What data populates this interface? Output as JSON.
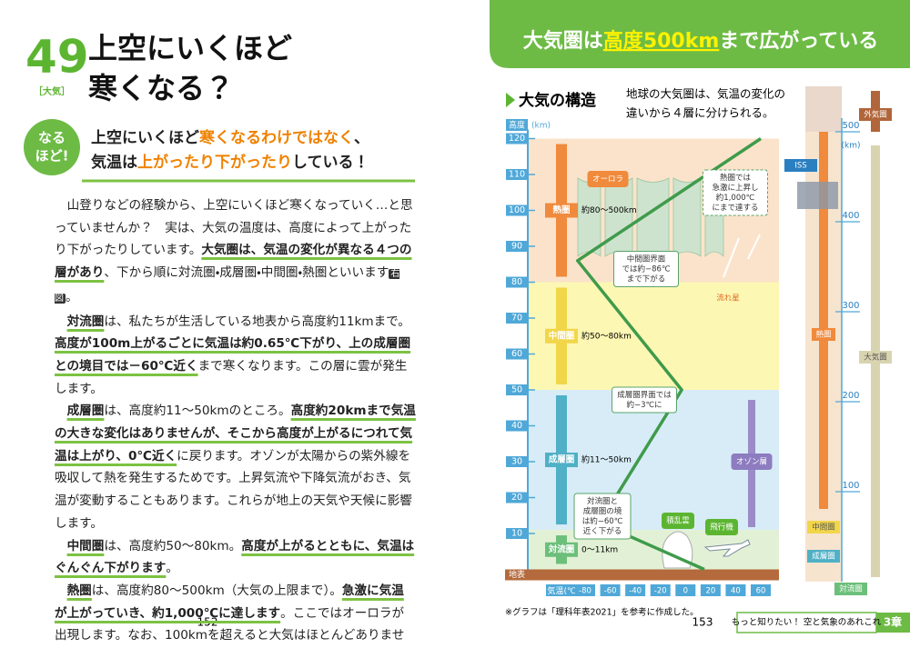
{
  "left_page": {
    "number": "49",
    "category": "［大気］",
    "title": [
      "上空にいくほど",
      "寒くなる？"
    ],
    "badge": [
      "なる",
      "ほど!"
    ],
    "lead": [
      [
        {
          "text": "上空にいくほど"
        },
        {
          "text": "寒くなるわけではなく",
          "em": true
        },
        {
          "text": "、"
        }
      ],
      [
        {
          "text": "気温は"
        },
        {
          "text": "上がったり下がったり",
          "em": true
        },
        {
          "text": "している！"
        }
      ]
    ],
    "paragraphs": [
      [
        {
          "text": "山登りなどの経験から、上空にいくほど寒くなっていく…と思っていませんか？　実は、大気の温度は、高度によって上がったり下がったりしています。"
        },
        {
          "text": "大気圏は、気温の変化が異なる４つの層があり",
          "bold": true
        },
        {
          "text": "、下から順に対流圏・成層圏・中間圏・熱圏といいます"
        },
        {
          "text": "右図",
          "tag": true
        },
        {
          "text": "。"
        }
      ],
      [
        {
          "text": "対流圏",
          "bold": true
        },
        {
          "text": "は、私たちが生活している地表から高度約11kmまで。"
        },
        {
          "text": "高度が100m上がるごとに気温は約0.65℃下がり、上の成層圏との境目では－60℃近く",
          "bold": true
        },
        {
          "text": "まで寒くなります。この層に雲が発生します。"
        }
      ],
      [
        {
          "text": "成層圏",
          "bold": true
        },
        {
          "text": "は、高度約11～50kmのところ。"
        },
        {
          "text": "高度約20kmまで気温の大きな変化はありませんが、そこから高度が上がるにつれて気温は上がり、0℃近く",
          "bold": true
        },
        {
          "text": "に戻ります。オゾンが太陽からの紫外線を吸収して熱を発生するためです。上昇気流や下降気流がおき、気温が変動することもあります。これらが地上の天気や天候に影響します。"
        }
      ],
      [
        {
          "text": "中間圏",
          "bold": true
        },
        {
          "text": "は、高度約50～80km。"
        },
        {
          "text": "高度が上がるとともに、気温はぐんぐん下がります",
          "bold": true
        },
        {
          "text": "。"
        }
      ],
      [
        {
          "text": "熱圏",
          "bold": true
        },
        {
          "text": "は、高度約80～500km（大気の上限まで）。"
        },
        {
          "text": "急激に気温が上がっていき、約1,000℃に達します",
          "bold": true
        },
        {
          "text": "。ここではオーロラが出現します。なお、100kmを超えると大気はほとんどありません。"
        }
      ]
    ],
    "page": "152"
  },
  "right_page": {
    "banner": [
      {
        "text": "大気圏は"
      },
      {
        "text": "高度500km",
        "em": true
      },
      {
        "text": "まで広がっている"
      }
    ],
    "section": "大気の構造",
    "description": [
      "地球の大気圏は、気温の変化の",
      "違いから４層に分けられる。"
    ],
    "note": "※グラフは「理科年表2021」を参考に作成した。",
    "page": "153",
    "footer": "もっと知りたい！ 空と気象のあれこれ",
    "chapter": "3章"
  },
  "chart_data": {
    "type": "line",
    "ylabel": "高度",
    "yunit": "(km)",
    "xlabel": "気温",
    "xunit": "(℃)",
    "ground": "地表",
    "ylim": [
      0,
      120
    ],
    "yticks": [
      10,
      20,
      30,
      40,
      50,
      60,
      70,
      80,
      90,
      100,
      110,
      120
    ],
    "xlim": [
      -80,
      60
    ],
    "xticks": [
      -80,
      -60,
      -40,
      -20,
      0,
      20,
      40,
      60
    ],
    "series": [
      {
        "color": "#3f9b4b",
        "x": [
          15,
          -56,
          -56,
          -3,
          -86,
          60
        ],
        "values": [
          0,
          11,
          20,
          50,
          86,
          120
        ]
      }
    ],
    "layers": [
      {
        "name": "熱圏",
        "label": "約80～500km",
        "from": 80,
        "to": 120,
        "color": "#fbe3cb",
        "accent": "#f08a3c"
      },
      {
        "name": "中間圏",
        "label": "約50～80km",
        "from": 50,
        "to": 80,
        "color": "#fdf7b4",
        "accent": "#f2d64a"
      },
      {
        "name": "成層圏",
        "label": "約11～50km",
        "from": 11,
        "to": 50,
        "color": "#d7ecf7",
        "accent": "#4fb0c6"
      },
      {
        "name": "対流圏",
        "label": "0～11km",
        "from": 0,
        "to": 11,
        "color": "#e2f1d5",
        "accent": "#6cbf7a"
      }
    ],
    "annotations": [
      [
        "オーロラ"
      ],
      [
        "熱圏では",
        "急激に上昇し",
        "約1,000℃",
        "にまで達する"
      ],
      [
        "中間圏界面",
        "では約−86℃",
        "まで下がる"
      ],
      [
        "流れ星"
      ],
      [
        "成層圏界面では",
        "約−3℃に"
      ],
      [
        "オゾン層"
      ],
      [
        "対流圏と",
        "成層圏の境",
        "は約−60℃",
        "近く下がる"
      ],
      [
        "積乱雲"
      ],
      [
        "飛行機"
      ]
    ],
    "side_scale": {
      "ylim": [
        0,
        500
      ],
      "yticks": [
        100,
        200,
        300,
        400,
        500
      ],
      "unit": "(km)",
      "labels": [
        "外気圏",
        "熱圏",
        "大気圏",
        "中間圏",
        "成層圏",
        "対流圏",
        "ISS"
      ]
    }
  }
}
